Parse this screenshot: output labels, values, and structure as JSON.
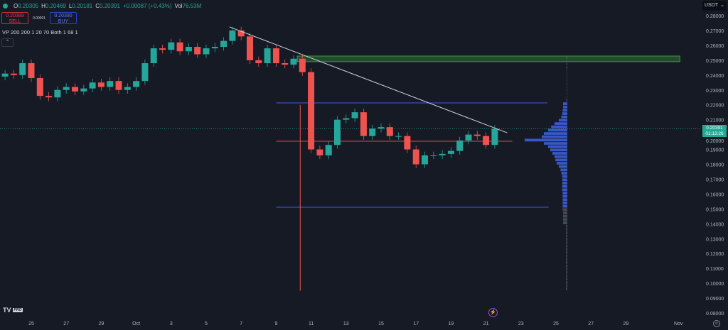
{
  "header": {
    "ohlc": [
      {
        "key": "O",
        "value": "0.20305"
      },
      {
        "key": "H",
        "value": "0.20469"
      },
      {
        "key": "L",
        "value": "0.20181"
      },
      {
        "key": "C",
        "value": "0.20391"
      }
    ],
    "change": "+0.00087 (+0.43%)",
    "vol_label": "Vol",
    "vol_value": "76.53M",
    "sell_price": "0.20389",
    "sell_label": "SELL",
    "spread": "0.00001",
    "buy_price": "0.20390",
    "buy_label": "BUY",
    "indicator": "VP 200 200 1 20 70 Both 1 68 1",
    "collapse_icon": "chevron-up-icon"
  },
  "axis": {
    "currency": "USDT",
    "current_price": "0.20391",
    "countdown": "01:13:26"
  },
  "colors": {
    "background": "#161a25",
    "up": "#26a69a",
    "down": "#ef5350",
    "value_area": "#3d5fd9",
    "profile_outside": "#5d606b",
    "trendline": "#d1d4dc",
    "zone": "#3f7a43",
    "level_blue": "#3d5fd9",
    "level_red": "#d64550"
  },
  "chart_data": {
    "type": "candlestick",
    "y_ticks": [
      "0.28000",
      "0.27000",
      "0.26000",
      "0.25000",
      "0.24000",
      "0.23000",
      "0.22000",
      "0.21000",
      "0.20000",
      "0.19000",
      "0.18000",
      "0.17000",
      "0.16000",
      "0.15000",
      "0.14000",
      "0.13000",
      "0.12000",
      "0.11000",
      "0.10000",
      "0.09000",
      "0.08000"
    ],
    "x_ticks": [
      "25",
      "27",
      "29",
      "Oct",
      "3",
      "5",
      "7",
      "9",
      "11",
      "13",
      "15",
      "17",
      "19",
      "21",
      "23",
      "25",
      "27",
      "29",
      "Nov"
    ],
    "ylim": [
      0.08,
      0.28
    ],
    "candle_times": [
      "Sep 23 12:00",
      "Sep 24 00:00",
      "Sep 24 12:00",
      "Sep 25 00:00",
      "Sep 25 12:00",
      "Sep 26 00:00",
      "Sep 26 12:00",
      "Sep 27 00:00",
      "Sep 27 12:00",
      "Sep 28 00:00",
      "Sep 28 12:00",
      "Sep 29 00:00",
      "Sep 29 12:00",
      "Sep 30 00:00",
      "Sep 30 12:00",
      "Oct 1 00:00",
      "Oct 1 12:00",
      "Oct 2 00:00",
      "Oct 2 12:00",
      "Oct 3 00:00",
      "Oct 3 12:00",
      "Oct 4 00:00",
      "Oct 4 12:00",
      "Oct 5 00:00",
      "Oct 5 12:00",
      "Oct 6 00:00",
      "Oct 6 12:00",
      "Oct 7 00:00",
      "Oct 7 12:00",
      "Oct 8 00:00",
      "Oct 8 12:00",
      "Oct 9 00:00",
      "Oct 9 12:00",
      "Oct 10 00:00",
      "Oct 10 12:00",
      "Oct 11 00:00",
      "Oct 11 12:00",
      "Oct 12 00:00",
      "Oct 12 12:00",
      "Oct 13 00:00",
      "Oct 13 12:00",
      "Oct 14 00:00",
      "Oct 14 12:00",
      "Oct 15 00:00",
      "Oct 15 12:00",
      "Oct 16 00:00",
      "Oct 16 12:00",
      "Oct 17 00:00",
      "Oct 17 12:00",
      "Oct 18 00:00",
      "Oct 18 12:00",
      "Oct 19 00:00",
      "Oct 19 12:00",
      "Oct 20 00:00",
      "Oct 20 12:00",
      "Oct 21 00:00",
      "Oct 21 12:00"
    ],
    "closes": [
      0.241,
      0.24,
      0.248,
      0.238,
      0.226,
      0.225,
      0.23,
      0.232,
      0.229,
      0.231,
      0.235,
      0.232,
      0.236,
      0.23,
      0.232,
      0.236,
      0.248,
      0.258,
      0.257,
      0.262,
      0.256,
      0.259,
      0.254,
      0.258,
      0.259,
      0.263,
      0.27,
      0.266,
      0.25,
      0.248,
      0.258,
      0.248,
      0.247,
      0.251,
      0.242,
      0.19,
      0.186,
      0.193,
      0.21,
      0.211,
      0.215,
      0.199,
      0.204,
      0.205,
      0.199,
      0.199,
      0.19,
      0.18,
      0.186,
      0.186,
      0.187,
      0.189,
      0.196,
      0.2,
      0.199,
      0.193,
      0.2039
    ],
    "flash_crash_low": {
      "time": "Oct 10 12:00",
      "price": 0.095
    },
    "drawings": {
      "trendline": {
        "from": {
          "time": "Oct 6 08:00",
          "price": 0.2724
        },
        "to": {
          "time": "Oct 22 05:00",
          "price": 0.2012
        }
      },
      "zone": {
        "from_time": "Oct 10 05:00",
        "to_time": "Nov 1 02:00",
        "top": 0.2528,
        "bottom": 0.249
      },
      "levels": [
        {
          "price": 0.2213,
          "from": "Oct 9 00:00",
          "to": "Oct 24 12:00",
          "color": "blue"
        },
        {
          "price": 0.1955,
          "from": "Oct 9 00:00",
          "to": "Oct 22 12:00",
          "color": "red"
        },
        {
          "price": 0.1511,
          "from": "Oct 9 00:00",
          "to": "Oct 24 14:00",
          "color": "blue"
        }
      ]
    },
    "volume_profile": {
      "price_top": 0.253,
      "price_bottom": 0.095,
      "value_area": [
        0.1511,
        0.2213
      ],
      "poc": 0.1955,
      "rows": [
        3,
        2,
        2,
        2,
        1,
        1,
        1,
        1,
        1,
        1,
        1,
        1,
        1,
        2,
        10,
        10,
        11,
        12,
        14,
        20,
        30,
        38,
        45,
        55,
        60,
        100,
        55,
        45,
        40,
        35,
        30,
        28,
        25,
        20,
        16,
        14,
        12,
        12,
        12,
        12,
        12,
        11,
        11,
        11,
        11,
        11,
        11,
        10,
        10,
        10,
        10,
        3,
        3,
        3,
        3,
        3,
        3,
        3,
        3,
        3,
        3,
        3,
        3,
        3,
        3,
        3,
        3,
        3,
        3,
        3,
        3
      ]
    }
  }
}
